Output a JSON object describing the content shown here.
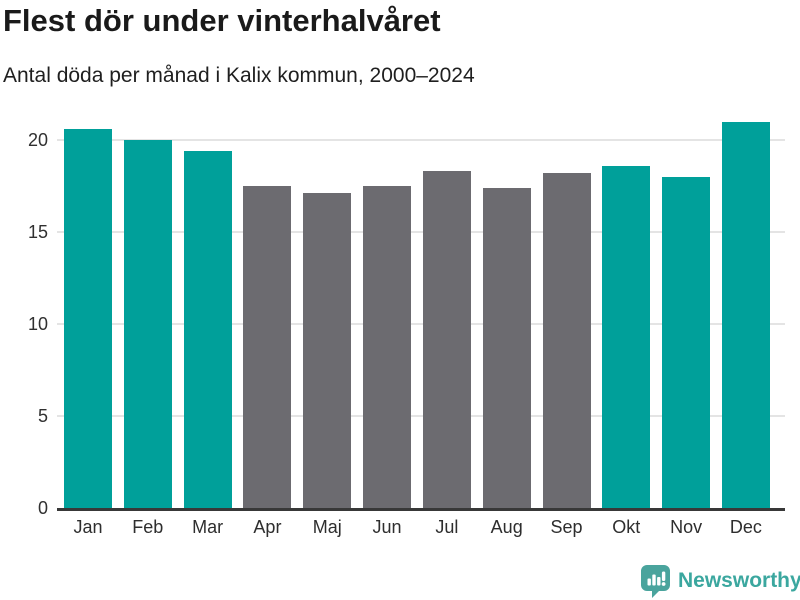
{
  "header": {
    "title": "Flest dör under vinterhalvåret",
    "subtitle": "Antal döda per månad i Kalix kommun, 2000–2024"
  },
  "chart_data": {
    "type": "bar",
    "title": "Flest dör under vinterhalvåret",
    "subtitle": "Antal döda per månad i Kalix kommun, 2000–2024",
    "categories": [
      "Jan",
      "Feb",
      "Mar",
      "Apr",
      "Maj",
      "Jun",
      "Jul",
      "Aug",
      "Sep",
      "Okt",
      "Nov",
      "Dec"
    ],
    "values": [
      20.6,
      20.0,
      19.4,
      17.5,
      17.1,
      17.5,
      18.3,
      17.4,
      18.2,
      18.6,
      18.0,
      21.0
    ],
    "highlighted": [
      true,
      true,
      true,
      false,
      false,
      false,
      false,
      false,
      false,
      true,
      true,
      true
    ],
    "highlight_color": "#00a09a",
    "muted_color": "#6c6b70",
    "xlabel": "",
    "ylabel": "",
    "yticks": [
      0,
      5,
      10,
      15,
      20
    ],
    "ylim": [
      0,
      21.3
    ],
    "grid": "horizontal-only",
    "legend": "none"
  },
  "footer": {
    "brand": "Newsworthy",
    "logo_icon": "newsworthy-speech-bubble-bar-chart-icon",
    "brand_color": "#3ba79f",
    "logo_fill": "#4aa49d"
  }
}
